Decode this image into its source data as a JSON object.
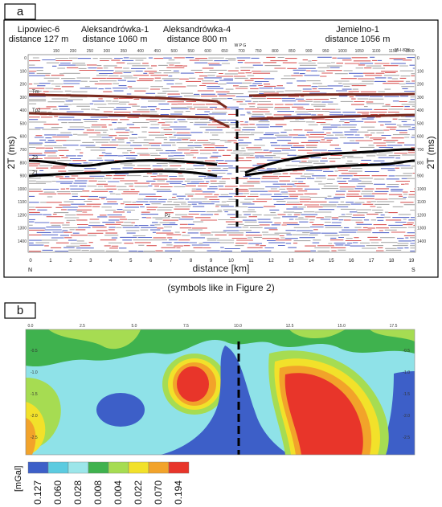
{
  "panel_a": {
    "label": "a",
    "wells": [
      {
        "name": "Lipowiec-6",
        "distance": "distance 127 m"
      },
      {
        "name": "Aleksandrówka-1",
        "distance": "distance 1060 m"
      },
      {
        "name": "Aleksandrówka-4",
        "distance": "distance 800 m"
      },
      {
        "name": "Jemielno-1",
        "distance": "distance 1056 m"
      }
    ],
    "profile": "35-I-82K",
    "well_marker": "W P G",
    "cdp_ticks": [
      150,
      200,
      250,
      300,
      350,
      400,
      450,
      500,
      550,
      600,
      650,
      700,
      750,
      800,
      850,
      900,
      950,
      1000,
      1050,
      1100,
      1150,
      1200
    ],
    "time_ticks": [
      0,
      100,
      200,
      300,
      400,
      500,
      600,
      700,
      800,
      900,
      1000,
      1100,
      1200,
      1300,
      1400
    ],
    "y_label": "2T (ms)",
    "distance_ticks": [
      0,
      1,
      2,
      3,
      4,
      5,
      6,
      7,
      8,
      9,
      10,
      11,
      12,
      13,
      14,
      15,
      16,
      17,
      18,
      19
    ],
    "x_label": "distance [km]",
    "north": "N",
    "south": "S",
    "horizons": [
      "Tm",
      "Tp2",
      "Z3",
      "Z1",
      "Pz"
    ],
    "caption": "(symbols like in Figure 2)"
  },
  "panel_b": {
    "label": "b",
    "x_ticks": [
      "0.0",
      "2.5",
      "5.0",
      "7.5",
      "10.0",
      "12.5",
      "15.0",
      "17.5"
    ],
    "y_ticks": [
      "-0.5",
      "-1.0",
      "-1.5",
      "-2.0",
      "-2.5"
    ],
    "legend": {
      "unit": "[mGal]",
      "values": [
        "0.127",
        "0.060",
        "0.028",
        "0.008",
        "0.004",
        "0.022",
        "0.070",
        "0.194"
      ]
    }
  }
}
